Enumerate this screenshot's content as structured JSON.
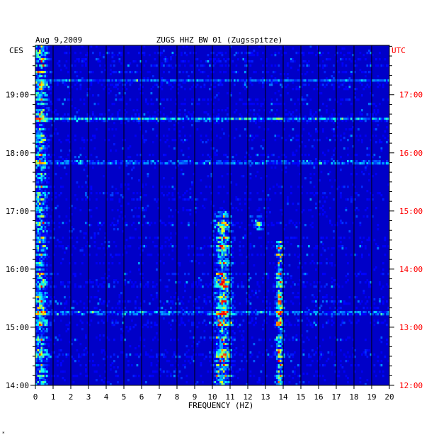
{
  "chart_data": {
    "type": "heatmap",
    "date": "Aug 9,2009",
    "title": "ZUGS HHZ BW 01 (Zugsspitze)",
    "left_axis_title": "CES",
    "right_axis_title": "UTC",
    "xlabel": "FREQUENCY (HZ)",
    "xlim": [
      0,
      20
    ],
    "x_ticks": [
      0,
      1,
      2,
      3,
      4,
      5,
      6,
      7,
      8,
      9,
      10,
      11,
      12,
      13,
      14,
      15,
      16,
      17,
      18,
      19,
      20
    ],
    "y_ticks_left": [
      "14:00",
      "15:00",
      "16:00",
      "17:00",
      "18:00",
      "19:00"
    ],
    "y_ticks_right": [
      "12:00",
      "13:00",
      "14:00",
      "15:00",
      "16:00",
      "17:00"
    ],
    "ylim_local_hours": [
      14.0,
      19.85
    ],
    "colors": {
      "background": "#0000c8",
      "low": "#0000ff",
      "mid": "#00ffff",
      "high": "#ffff00",
      "peak": "#ff0000",
      "utc_label": "#ff0000",
      "frame": "#000000"
    },
    "strong_bands_hz": [
      {
        "center": 0.3,
        "width": 0.6,
        "intensity": 0.55,
        "during": "all"
      },
      {
        "center": 10.6,
        "width": 0.7,
        "intensity": 0.7,
        "during": "14:00-17:00"
      },
      {
        "center": 13.8,
        "width": 0.3,
        "intensity": 0.75,
        "during": "14:00-16:30"
      },
      {
        "center": 12.6,
        "width": 0.4,
        "intensity": 0.5,
        "during": "16:40-16:55"
      }
    ],
    "broadband_events_local": [
      "15:15",
      "17:50",
      "18:35",
      "19:15"
    ]
  },
  "corner_mark": "*"
}
